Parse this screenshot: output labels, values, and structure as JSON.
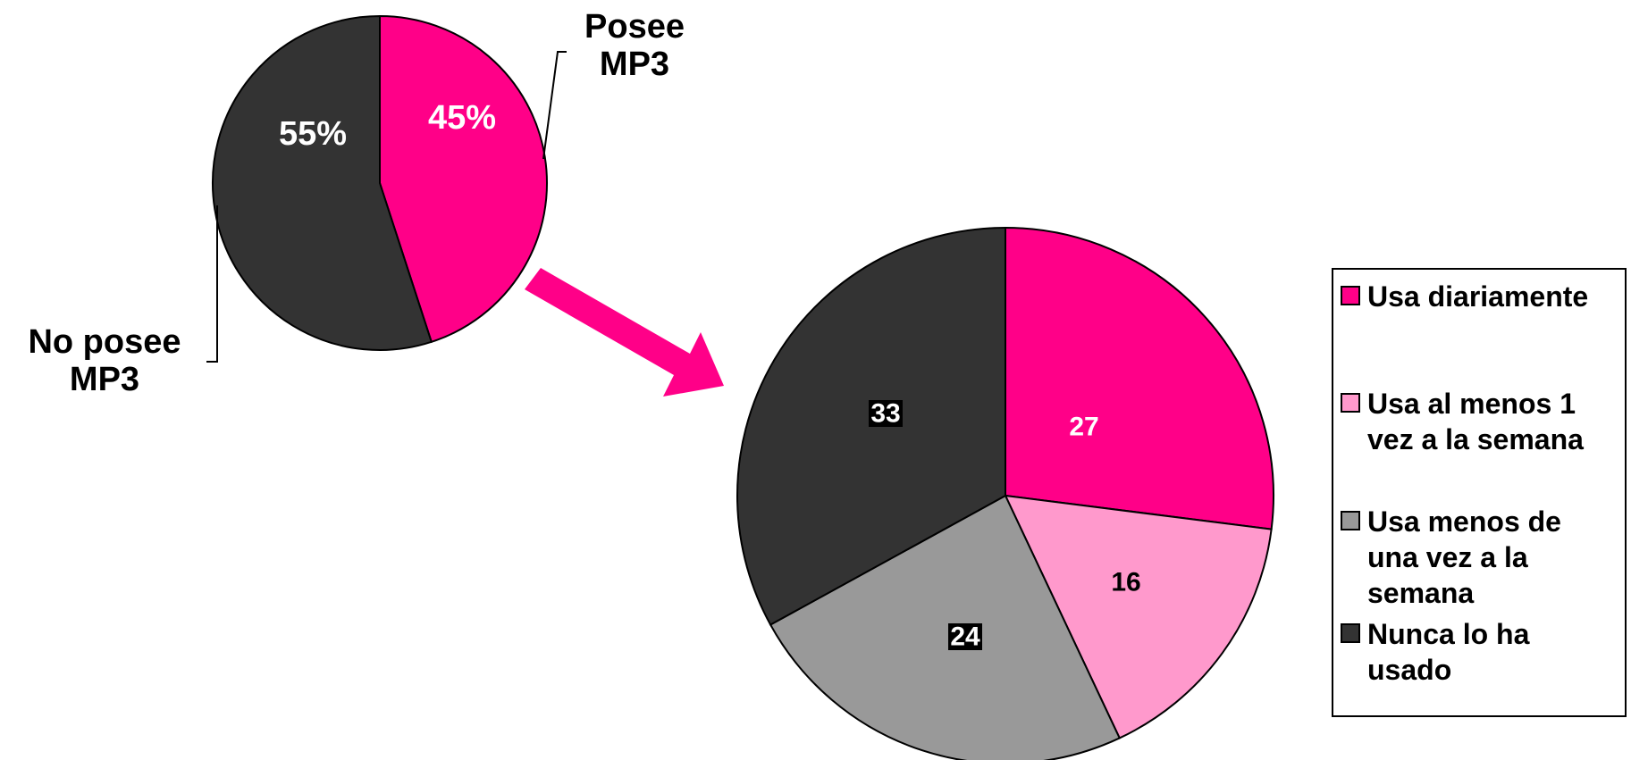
{
  "chart_data": [
    {
      "type": "pie",
      "slices": [
        {
          "label": "Posee MP3",
          "value": 45,
          "display": "45%",
          "color": "#ff0088"
        },
        {
          "label": "No posee MP3",
          "value": 55,
          "display": "55%",
          "color": "#333333"
        }
      ]
    },
    {
      "type": "pie",
      "slices": [
        {
          "label": "Usa diariamente",
          "value": 27,
          "display": "27",
          "color": "#ff0088"
        },
        {
          "label": "Usa al menos 1 vez a la semana",
          "value": 16,
          "display": "16",
          "color": "#ff99cc"
        },
        {
          "label": "Usa menos de una vez a la semana",
          "value": 24,
          "display": "24",
          "color": "#999999"
        },
        {
          "label": "Nunca lo ha usado",
          "value": 33,
          "display": "33",
          "color": "#333333"
        }
      ],
      "legend": "right"
    }
  ],
  "labels": {
    "small_pie_right": [
      "Posee",
      "MP3"
    ],
    "small_pie_left": [
      "No posee",
      "MP3"
    ]
  },
  "legend": {
    "items": [
      {
        "lines": [
          "Usa diariamente"
        ],
        "color": "#ff0088"
      },
      {
        "lines": [
          "Usa al menos 1",
          "vez a la semana"
        ],
        "color": "#ff99cc"
      },
      {
        "lines": [
          "Usa menos de",
          "una vez a la",
          "semana"
        ],
        "color": "#999999"
      },
      {
        "lines": [
          "Nunca lo ha",
          "usado"
        ],
        "color": "#333333"
      }
    ]
  },
  "colors": {
    "arrow": "#ff0088"
  }
}
